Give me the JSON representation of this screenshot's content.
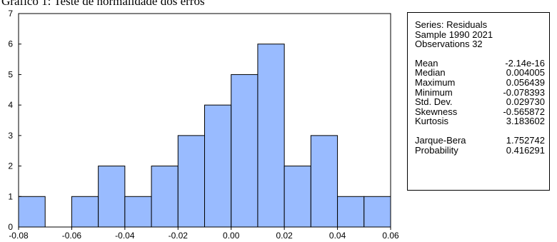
{
  "chart_data": {
    "type": "bar",
    "title": "Gráfico 1: Teste de normalidade dos erros",
    "bins": [
      {
        "x0": -0.08,
        "x1": -0.07,
        "count": 1
      },
      {
        "x0": -0.07,
        "x1": -0.06,
        "count": 0
      },
      {
        "x0": -0.06,
        "x1": -0.05,
        "count": 1
      },
      {
        "x0": -0.05,
        "x1": -0.04,
        "count": 2
      },
      {
        "x0": -0.04,
        "x1": -0.03,
        "count": 1
      },
      {
        "x0": -0.03,
        "x1": -0.02,
        "count": 2
      },
      {
        "x0": -0.02,
        "x1": -0.01,
        "count": 3
      },
      {
        "x0": -0.01,
        "x1": 0.0,
        "count": 4
      },
      {
        "x0": 0.0,
        "x1": 0.01,
        "count": 5
      },
      {
        "x0": 0.01,
        "x1": 0.02,
        "count": 6
      },
      {
        "x0": 0.02,
        "x1": 0.03,
        "count": 2
      },
      {
        "x0": 0.03,
        "x1": 0.04,
        "count": 3
      },
      {
        "x0": 0.04,
        "x1": 0.05,
        "count": 1
      },
      {
        "x0": 0.05,
        "x1": 0.06,
        "count": 1
      }
    ],
    "xlim": [
      -0.08,
      0.06
    ],
    "ylim": [
      0,
      7
    ],
    "x_ticks": [
      "-0.08",
      "-0.06",
      "-0.04",
      "-0.02",
      "0.00",
      "0.02",
      "0.04",
      "0.06"
    ],
    "y_ticks": [
      "0",
      "1",
      "2",
      "3",
      "4",
      "5",
      "6",
      "7"
    ],
    "xlabel": "",
    "ylabel": "",
    "bar_color": "#99BBFF",
    "grid": false
  },
  "stats": {
    "header": [
      "Series: Residuals",
      "Sample 1990 2021",
      "Observations 32"
    ],
    "rows": [
      {
        "label": "Mean",
        "value": "-2.14e-16"
      },
      {
        "label": "Median",
        "value": "0.004005"
      },
      {
        "label": "Maximum",
        "value": "0.056439"
      },
      {
        "label": "Minimum",
        "value": "-0.078393"
      },
      {
        "label": "Std. Dev.",
        "value": "0.029730"
      },
      {
        "label": "Skewness",
        "value": "-0.565872"
      },
      {
        "label": "Kurtosis",
        "value": "3.183602"
      }
    ],
    "tests": [
      {
        "label": "Jarque-Bera",
        "value": "1.752742"
      },
      {
        "label": "Probability",
        "value": "0.416291"
      }
    ]
  }
}
